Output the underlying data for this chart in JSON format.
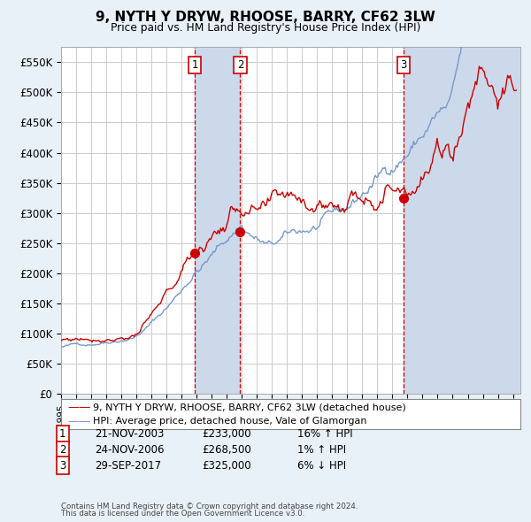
{
  "title": "9, NYTH Y DRYW, RHOOSE, BARRY, CF62 3LW",
  "subtitle": "Price paid vs. HM Land Registry's House Price Index (HPI)",
  "ylim": [
    0,
    575000
  ],
  "yticks": [
    0,
    50000,
    100000,
    150000,
    200000,
    250000,
    300000,
    350000,
    400000,
    450000,
    500000,
    550000
  ],
  "ytick_labels": [
    "£0",
    "£50K",
    "£100K",
    "£150K",
    "£200K",
    "£250K",
    "£300K",
    "£350K",
    "£400K",
    "£450K",
    "£500K",
    "£550K"
  ],
  "sale_dates": [
    "2003-11-21",
    "2006-11-24",
    "2017-09-29"
  ],
  "sale_prices": [
    233000,
    268500,
    325000
  ],
  "sale_labels": [
    "1",
    "2",
    "3"
  ],
  "sale_hpi_pct": [
    "16%",
    "1%",
    "6%"
  ],
  "sale_hpi_dir": [
    "↑",
    "↑",
    "↓"
  ],
  "sale_date_strs": [
    "21-NOV-2003",
    "24-NOV-2006",
    "29-SEP-2017"
  ],
  "sale_price_strs": [
    "£233,000",
    "£268,500",
    "£325,000"
  ],
  "legend_red": "9, NYTH Y DRYW, RHOOSE, BARRY, CF62 3LW (detached house)",
  "legend_blue": "HPI: Average price, detached house, Vale of Glamorgan",
  "footnote1": "Contains HM Land Registry data © Crown copyright and database right 2024.",
  "footnote2": "This data is licensed under the Open Government Licence v3.0.",
  "bg_color": "#e8f0f8",
  "plot_bg": "#ffffff",
  "red_color": "#cc0000",
  "blue_color": "#7799cc",
  "shade_color": "#ccd9ea",
  "vline_color": "#cc0000",
  "grid_color": "#cccccc"
}
